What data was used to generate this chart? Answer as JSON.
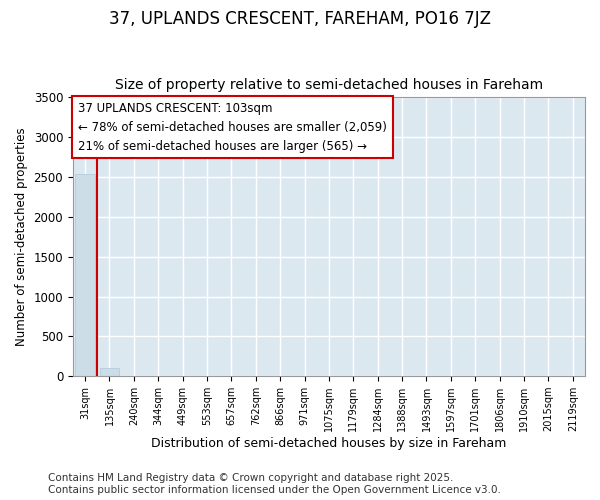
{
  "title_line1": "37, UPLANDS CRESCENT, FAREHAM, PO16 7JZ",
  "title_line2": "Size of property relative to semi-detached houses in Fareham",
  "xlabel": "Distribution of semi-detached houses by size in Fareham",
  "ylabel": "Number of semi-detached properties",
  "categories": [
    "31sqm",
    "135sqm",
    "240sqm",
    "344sqm",
    "449sqm",
    "553sqm",
    "657sqm",
    "762sqm",
    "866sqm",
    "971sqm",
    "1075sqm",
    "1179sqm",
    "1284sqm",
    "1388sqm",
    "1493sqm",
    "1597sqm",
    "1701sqm",
    "1806sqm",
    "1910sqm",
    "2015sqm",
    "2119sqm"
  ],
  "values": [
    2540,
    105,
    0,
    0,
    0,
    0,
    0,
    0,
    0,
    0,
    0,
    0,
    0,
    0,
    0,
    0,
    0,
    0,
    0,
    0,
    0
  ],
  "bar_color": "#ccdde8",
  "bar_edge_color": "#b0c8d8",
  "highlight_line_color": "#cc0000",
  "annotation_title": "37 UPLANDS CRESCENT: 103sqm",
  "annotation_line1": "← 78% of semi-detached houses are smaller (2,059)",
  "annotation_line2": "21% of semi-detached houses are larger (565) →",
  "annotation_box_color": "#ffffff",
  "annotation_box_edge": "#cc0000",
  "ylim": [
    0,
    3500
  ],
  "yticks": [
    0,
    500,
    1000,
    1500,
    2000,
    2500,
    3000,
    3500
  ],
  "figure_bg_color": "#ffffff",
  "plot_bg_color": "#dce8f0",
  "grid_color": "#ffffff",
  "footer_line1": "Contains HM Land Registry data © Crown copyright and database right 2025.",
  "footer_line2": "Contains public sector information licensed under the Open Government Licence v3.0.",
  "title_fontsize": 12,
  "subtitle_fontsize": 10,
  "footer_fontsize": 7.5,
  "annotation_fontsize": 8.5,
  "ylabel_fontsize": 8.5,
  "xlabel_fontsize": 9
}
